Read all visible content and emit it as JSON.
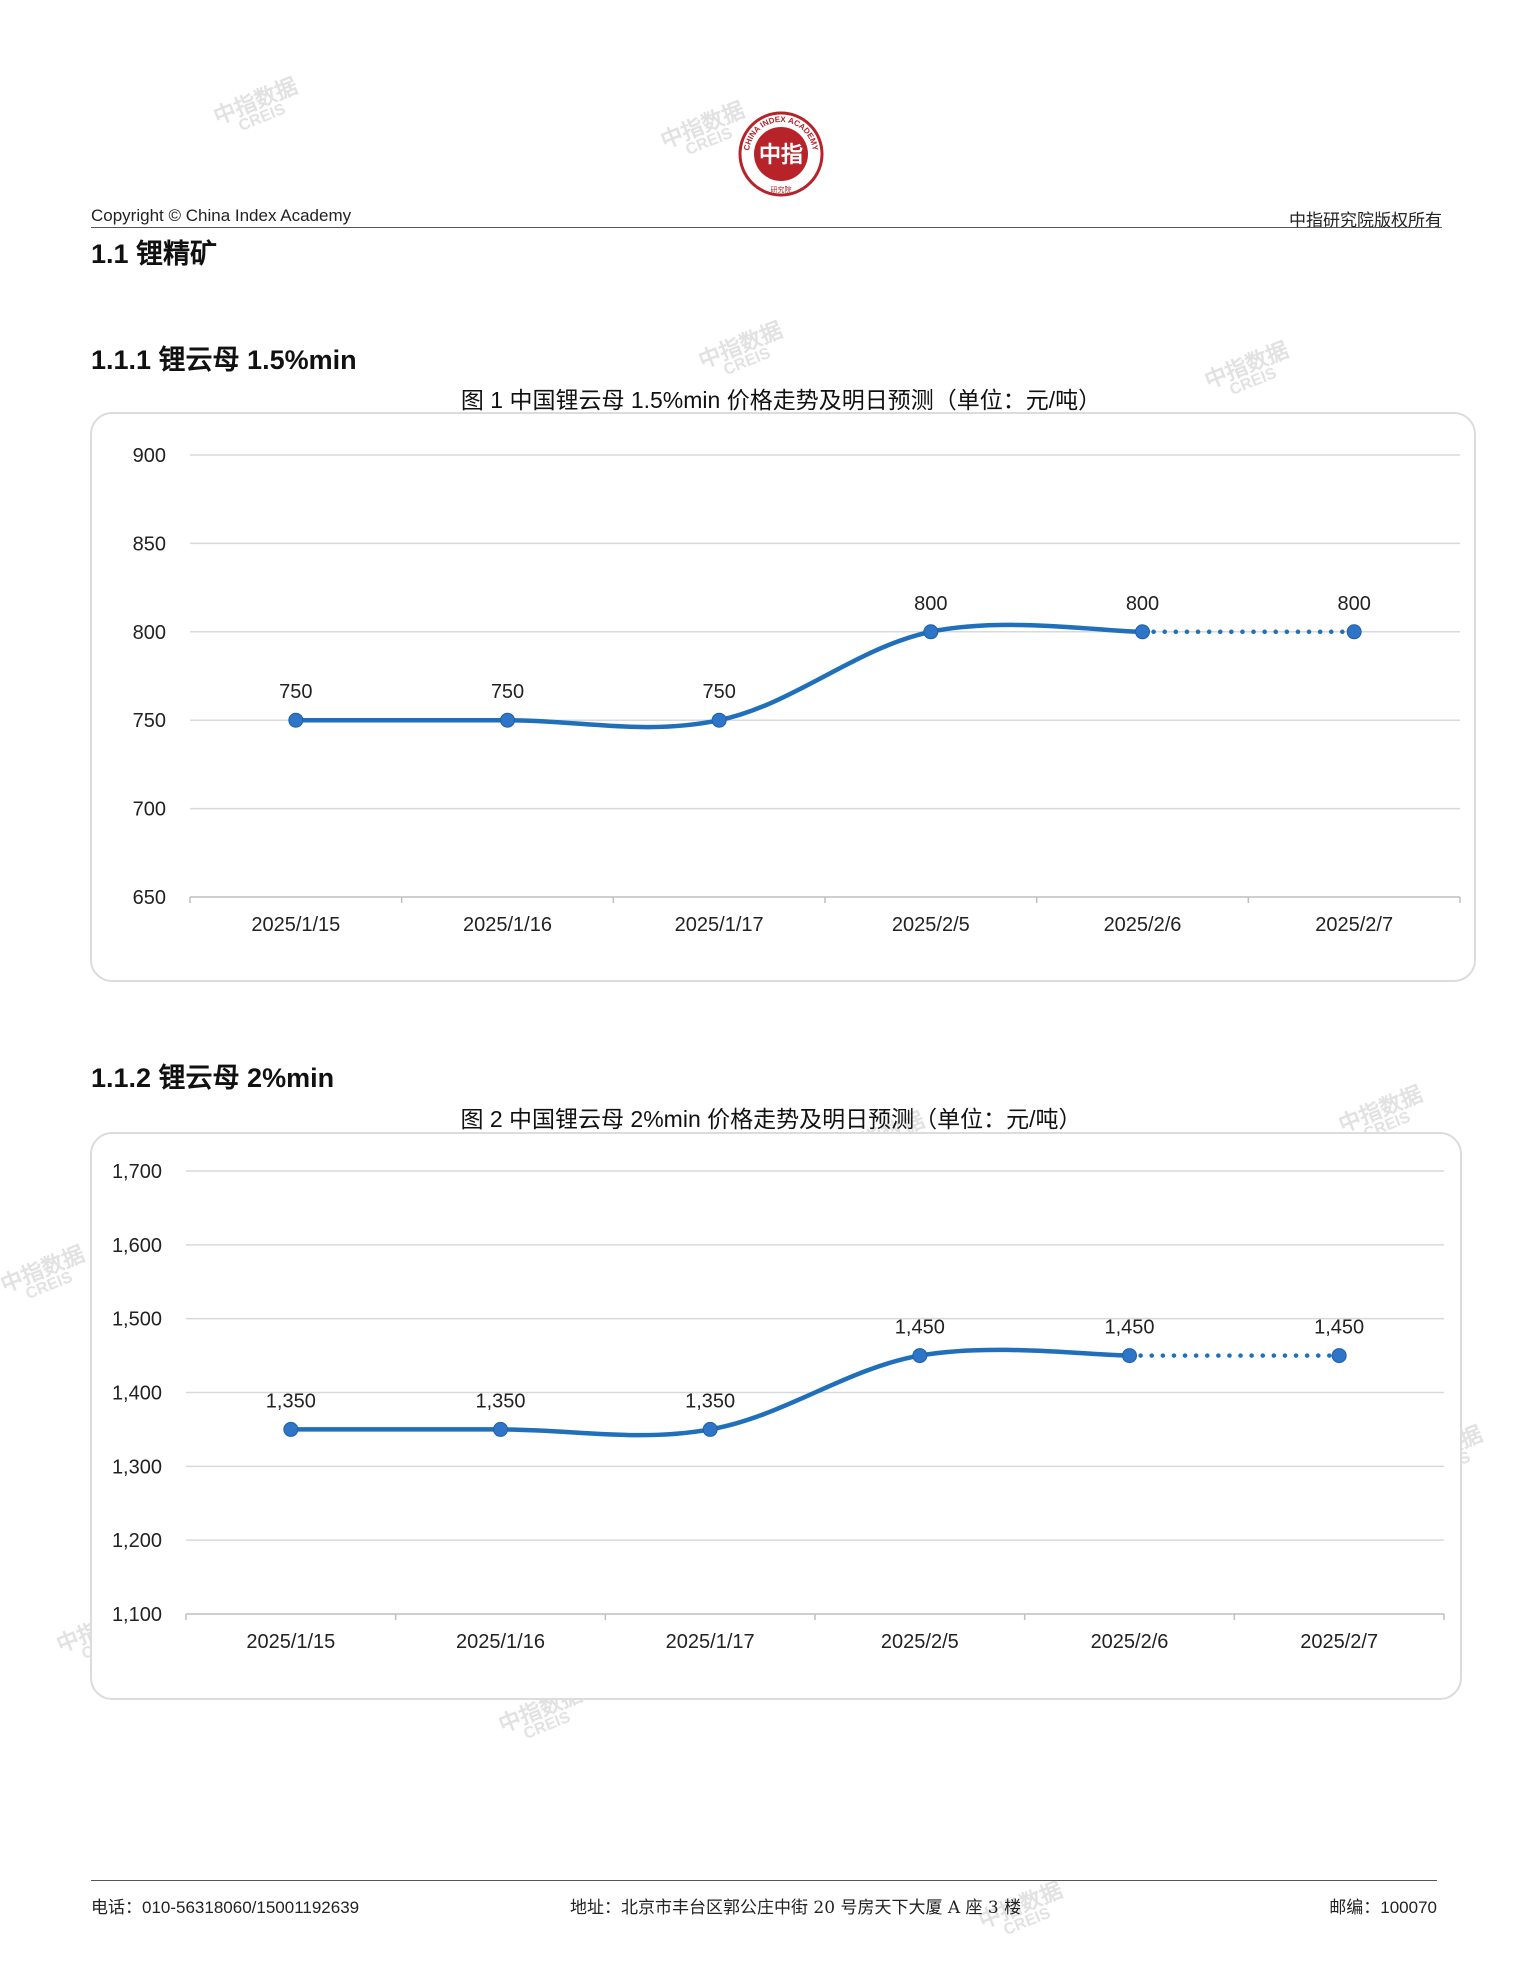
{
  "header": {
    "copyright": "Copyright © China Index Academy",
    "rights": "中指研究院版权所有",
    "logo_center": "中指",
    "logo_ring": "CHINA INDEX ACADEMY",
    "logo_bottom": "研究院"
  },
  "watermark": {
    "cn": "中指数据",
    "en": "CREIS"
  },
  "section": {
    "title": "1.1 锂精矿"
  },
  "sections": [
    {
      "heading": "1.1.1 锂云母 1.5%min",
      "caption": "图 1 中国锂云母 1.5%min 价格走势及明日预测（单位：元/吨）"
    },
    {
      "heading": "1.1.2 锂云母 2%min",
      "caption": "图 2 中国锂云母 2%min 价格走势及明日预测（单位：元/吨）"
    }
  ],
  "chart_data": [
    {
      "type": "line",
      "categories": [
        "2025/1/15",
        "2025/1/16",
        "2025/1/17",
        "2025/2/5",
        "2025/2/6",
        "2025/2/7"
      ],
      "values": [
        750,
        750,
        750,
        800,
        800,
        800
      ],
      "value_labels": [
        "750",
        "750",
        "750",
        "800",
        "800",
        "800"
      ],
      "forecast_from_index": 4,
      "yticks": [
        650,
        700,
        750,
        800,
        850,
        900
      ],
      "ytick_labels": [
        "650",
        "700",
        "750",
        "800",
        "850",
        "900"
      ],
      "ylim": [
        650,
        900
      ],
      "grid": true,
      "color": "#1f6fba"
    },
    {
      "type": "line",
      "categories": [
        "2025/1/15",
        "2025/1/16",
        "2025/1/17",
        "2025/2/5",
        "2025/2/6",
        "2025/2/7"
      ],
      "values": [
        1350,
        1350,
        1350,
        1450,
        1450,
        1450
      ],
      "value_labels": [
        "1,350",
        "1,350",
        "1,350",
        "1,450",
        "1,450",
        "1,450"
      ],
      "forecast_from_index": 4,
      "yticks": [
        1100,
        1200,
        1300,
        1400,
        1500,
        1600,
        1700
      ],
      "ytick_labels": [
        "1,100",
        "1,200",
        "1,300",
        "1,400",
        "1,500",
        "1,600",
        "1,700"
      ],
      "ylim": [
        1100,
        1700
      ],
      "grid": true,
      "color": "#1f6fba"
    }
  ],
  "footer": {
    "phone": "电话：010-56318060/15001192639",
    "address": "地址：北京市丰台区郭公庄中街 20 号房天下大厦 A 座 3 楼",
    "postcode": "邮编：100070"
  }
}
